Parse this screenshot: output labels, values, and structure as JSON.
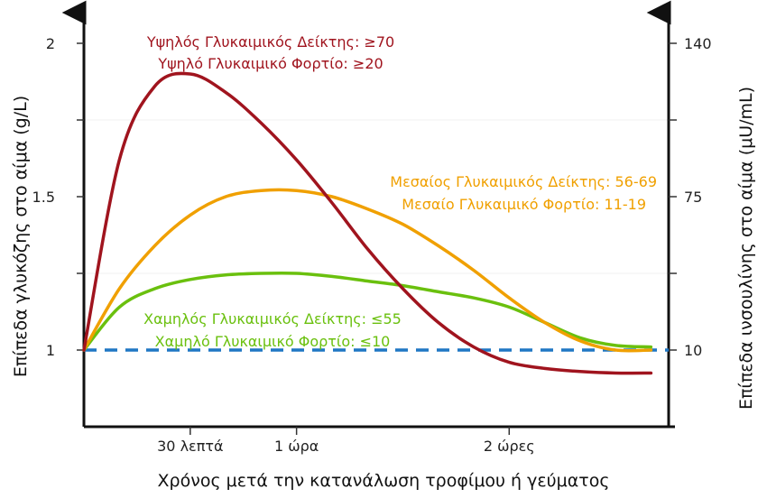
{
  "chart_data": {
    "type": "line",
    "xlabel": "Χρόνος μετά την κατανάλωση τροφίμου ή γεύματος",
    "ylabel_left": "Επίπεδα γλυκόζης στο αίμα (g/L)",
    "ylabel_right": "Επίπεδα ινσουλίνης στο αίμα (μU/mL)",
    "x_ticks": [
      {
        "x": 30,
        "label": "30 λεπτά"
      },
      {
        "x": 60,
        "label": "1 ώρα"
      },
      {
        "x": 120,
        "label": "2 ώρες"
      }
    ],
    "xlim": [
      0,
      165
    ],
    "ylim_left": [
      0.75,
      2.1
    ],
    "yticks_left": [
      {
        "y": 1,
        "label": "1"
      },
      {
        "y": 1.5,
        "label": "1.5"
      },
      {
        "y": 2,
        "label": "2"
      }
    ],
    "yticks_right": [
      {
        "y": 1,
        "label": "10"
      },
      {
        "y": 1.5,
        "label": "75"
      },
      {
        "y": 2,
        "label": "140"
      }
    ],
    "baseline": {
      "y": 1,
      "style": "dashed",
      "color": "#1f77c4"
    },
    "series": [
      {
        "key": "high",
        "color": "#a0141e",
        "labels": [
          "Υψηλός Γλυκαιμικός Δείκτης: ≥70",
          "Υψηλό Γλυκαιμικό Φορτίο: ≥20"
        ],
        "x": [
          0,
          10,
          20,
          30,
          40,
          50,
          60,
          70,
          80,
          90,
          100,
          110,
          120,
          130,
          140,
          150,
          160
        ],
        "y": [
          1.0,
          1.62,
          1.86,
          1.9,
          1.84,
          1.74,
          1.62,
          1.48,
          1.33,
          1.2,
          1.09,
          1.01,
          0.96,
          0.94,
          0.93,
          0.925,
          0.925
        ]
      },
      {
        "key": "medium",
        "color": "#f0a000",
        "labels": [
          "Μεσαίος Γλυκαιμικός Δείκτης: 56-69",
          "Μεσαίο Γλυκαιμικό Φορτίο: 11-19"
        ],
        "x": [
          0,
          10,
          20,
          30,
          40,
          50,
          60,
          70,
          80,
          90,
          100,
          110,
          120,
          130,
          140,
          150,
          160
        ],
        "y": [
          1.0,
          1.2,
          1.34,
          1.44,
          1.5,
          1.52,
          1.52,
          1.5,
          1.46,
          1.41,
          1.34,
          1.26,
          1.17,
          1.09,
          1.03,
          1.0,
          1.0
        ]
      },
      {
        "key": "low",
        "color": "#6ac00e",
        "labels": [
          "Χαμηλός Γλυκαιμικός Δείκτης: ≤55",
          "Χαμηλό Γλυκαιμικό Φορτίο: ≤10"
        ],
        "x": [
          0,
          10,
          20,
          30,
          40,
          50,
          60,
          70,
          80,
          90,
          100,
          110,
          120,
          130,
          140,
          150,
          160
        ],
        "y": [
          1.0,
          1.14,
          1.2,
          1.23,
          1.245,
          1.25,
          1.25,
          1.24,
          1.225,
          1.21,
          1.19,
          1.17,
          1.14,
          1.09,
          1.04,
          1.015,
          1.01
        ]
      }
    ]
  }
}
